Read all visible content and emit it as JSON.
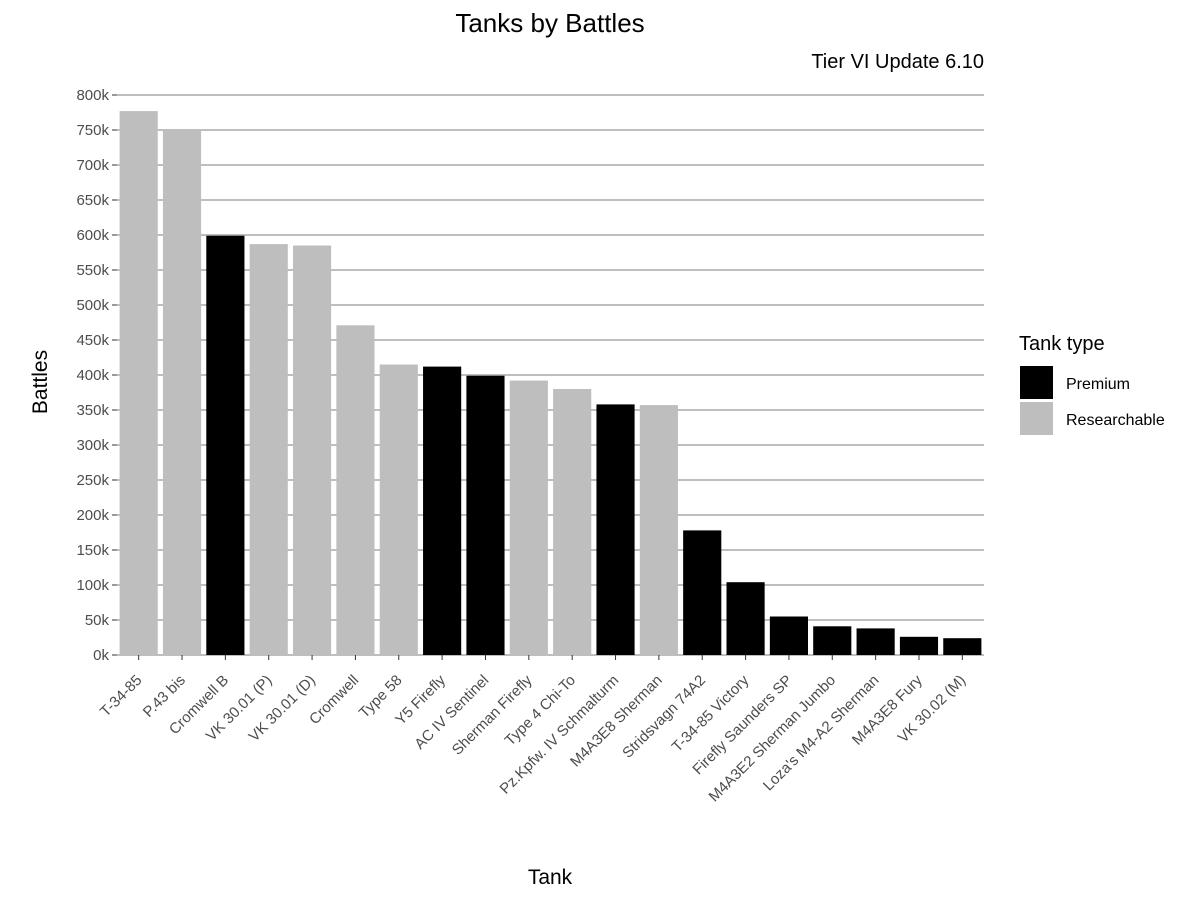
{
  "chart_data": {
    "type": "bar",
    "title": "Tanks by Battles",
    "subtitle": "Tier VI Update 6.10",
    "xlabel": "Tank",
    "ylabel": "Battles",
    "ylim": [
      0,
      800000
    ],
    "y_ticks": [
      0,
      50000,
      100000,
      150000,
      200000,
      250000,
      300000,
      350000,
      400000,
      450000,
      500000,
      550000,
      600000,
      650000,
      700000,
      750000,
      800000
    ],
    "y_tick_labels": [
      "0k",
      "50k",
      "100k",
      "150k",
      "200k",
      "250k",
      "300k",
      "350k",
      "400k",
      "450k",
      "500k",
      "550k",
      "600k",
      "650k",
      "700k",
      "750k",
      "800k"
    ],
    "grid": "horizontal",
    "legend": {
      "title": "Tank type",
      "position": "right",
      "entries": [
        {
          "name": "Premium",
          "color": "#000000"
        },
        {
          "name": "Researchable",
          "color": "#bebebe"
        }
      ]
    },
    "categories": [
      "T-34-85",
      "P.43 bis",
      "Cromwell B",
      "VK 30.01 (P)",
      "VK 30.01 (D)",
      "Cromwell",
      "Type 58",
      "Y5 Firefly",
      "AC IV Sentinel",
      "Sherman Firefly",
      "Type 4 Chi-To",
      "Pz.Kpfw. IV Schmalturm",
      "M4A3E8 Sherman",
      "Stridsvagn 74A2",
      "T-34-85 Victory",
      "Firefly Saunders SP",
      "M4A3E2 Sherman Jumbo",
      "Loza's M4-A2 Sherman",
      "M4A3E8 Fury",
      "VK 30.02 (M)"
    ],
    "values": [
      777000,
      751000,
      599000,
      587000,
      585000,
      471000,
      415000,
      412000,
      399000,
      392000,
      380000,
      358000,
      357000,
      178000,
      104000,
      55000,
      41000,
      38000,
      26000,
      24000
    ],
    "types": [
      "Researchable",
      "Researchable",
      "Premium",
      "Researchable",
      "Researchable",
      "Researchable",
      "Researchable",
      "Premium",
      "Premium",
      "Researchable",
      "Researchable",
      "Premium",
      "Researchable",
      "Premium",
      "Premium",
      "Premium",
      "Premium",
      "Premium",
      "Premium",
      "Premium"
    ]
  }
}
